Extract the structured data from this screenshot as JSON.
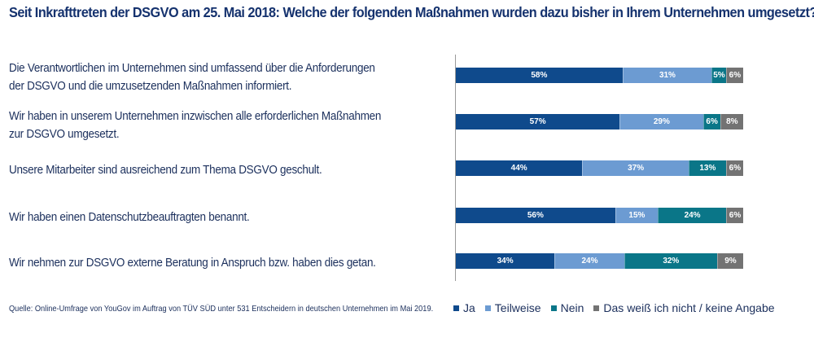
{
  "chart_data": {
    "type": "bar",
    "orientation": "horizontal",
    "stacked": true,
    "title": "Seit Inkrafttreten der DSGVO am 25. Mai 2018: Welche der folgenden Maßnahmen wurden dazu bisher in Ihrem Unternehmen umgesetzt?",
    "xlabel": "",
    "ylabel": "",
    "xlim": [
      0,
      100
    ],
    "unit": "%",
    "grid": false,
    "legend_position": "bottom-right",
    "categories": [
      [
        "Die Verantwortlichen im Unternehmen sind umfassend über die Anforderungen",
        "der DSGVO und die umzusetzenden Maßnahmen informiert."
      ],
      [
        "Wir haben in unserem Unternehmen inzwischen alle erforderlichen Maßnahmen",
        "zur DSGVO umgesetzt."
      ],
      [
        "Unsere Mitarbeiter sind ausreichend zum Thema DSGVO geschult."
      ],
      [
        "Wir haben einen Datenschutzbeauftragten benannt."
      ],
      [
        "Wir nehmen zur DSGVO externe Beratung in Anspruch bzw. haben dies getan."
      ]
    ],
    "series": [
      {
        "name": "Ja",
        "color": "#0f4a8c",
        "values": [
          58,
          57,
          44,
          56,
          34
        ]
      },
      {
        "name": "Teilweise",
        "color": "#6c9bd2",
        "values": [
          31,
          29,
          37,
          15,
          24
        ]
      },
      {
        "name": "Nein",
        "color": "#0a7688",
        "values": [
          5,
          6,
          13,
          24,
          32
        ]
      },
      {
        "name": "Das weiß ich nicht / keine Angabe",
        "color": "#737373",
        "values": [
          6,
          8,
          6,
          6,
          9
        ]
      }
    ],
    "source": "Quelle: Online-Umfrage von YouGov im Auftrag von TÜV SÜD unter 531 Entscheidern in deutschen Unternehmen im Mai 2019."
  }
}
